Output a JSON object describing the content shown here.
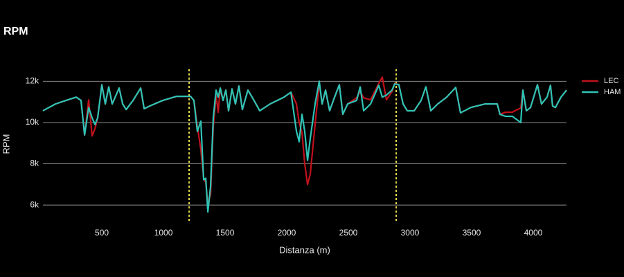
{
  "chart_data": {
    "type": "line",
    "title": "RPM",
    "x_label": "Distanza (m)",
    "y_label": "RPM",
    "x": [
      22,
      124,
      208,
      292,
      331,
      360,
      393,
      421,
      444,
      466,
      500,
      528,
      556,
      584,
      640,
      669,
      697,
      753,
      815,
      843,
      899,
      994,
      1107,
      1219,
      1247,
      1275,
      1303,
      1326,
      1343,
      1360,
      1382,
      1404,
      1427,
      1444,
      1461,
      1483,
      1506,
      1528,
      1556,
      1584,
      1612,
      1640,
      1685,
      1725,
      1781,
      1865,
      1978,
      2034,
      2079,
      2101,
      2124,
      2146,
      2169,
      2191,
      2230,
      2264,
      2287,
      2315,
      2348,
      2388,
      2427,
      2455,
      2494,
      2567,
      2596,
      2624,
      2680,
      2747,
      2775,
      2809,
      2854,
      2876,
      2910,
      2944,
      2978,
      3034,
      3090,
      3129,
      3169,
      3225,
      3298,
      3371,
      3410,
      3494,
      3607,
      3708,
      3730,
      3775,
      3831,
      3860,
      3899,
      3916,
      3944,
      3978,
      4034,
      4067,
      4112,
      4140,
      4157,
      4180,
      4225,
      4270
    ],
    "series": [
      {
        "name": "LEC",
        "color": "#c0121c",
        "values": [
          10570,
          10900,
          11070,
          11230,
          11070,
          9400,
          11100,
          9350,
          9700,
          10230,
          11830,
          10900,
          11730,
          10900,
          11670,
          10900,
          10630,
          11070,
          11670,
          10670,
          10830,
          11070,
          11270,
          11270,
          11070,
          9800,
          8700,
          7300,
          7100,
          6100,
          6500,
          9800,
          11300,
          10500,
          11670,
          11070,
          11570,
          10570,
          11630,
          10900,
          11770,
          10630,
          11570,
          11170,
          10570,
          10900,
          11230,
          11470,
          10900,
          10000,
          9500,
          8000,
          7000,
          7500,
          9900,
          11900,
          10900,
          11570,
          10570,
          11230,
          11830,
          10400,
          10900,
          11200,
          11500,
          11200,
          11100,
          11900,
          12200,
          11100,
          11500,
          11900,
          11830,
          10900,
          10570,
          10570,
          11070,
          11730,
          10570,
          10900,
          11230,
          11700,
          10470,
          10730,
          10900,
          10900,
          10400,
          10500,
          10500,
          10600,
          10700,
          11570,
          10570,
          10730,
          11830,
          10900,
          11230,
          11800,
          10800,
          10730,
          11230,
          11570
        ]
      },
      {
        "name": "HAM",
        "color": "#2ec4b6",
        "values": [
          10570,
          10900,
          11070,
          11230,
          11070,
          9400,
          10730,
          10230,
          9900,
          10230,
          11830,
          10900,
          11730,
          10900,
          11670,
          10900,
          10630,
          11070,
          11670,
          10670,
          10830,
          11070,
          11270,
          11270,
          11070,
          9570,
          10070,
          7230,
          7300,
          5670,
          6900,
          10230,
          11570,
          11230,
          11670,
          11070,
          11570,
          10570,
          11630,
          10900,
          11770,
          10630,
          11570,
          11170,
          10570,
          10900,
          11230,
          11470,
          9570,
          9070,
          10400,
          9570,
          8170,
          9230,
          10900,
          12000,
          10900,
          11570,
          10570,
          11230,
          11830,
          10400,
          10900,
          11070,
          11730,
          10570,
          10900,
          11800,
          11230,
          11330,
          11570,
          11870,
          11830,
          10900,
          10570,
          10570,
          11070,
          11730,
          10570,
          10900,
          11230,
          11700,
          10470,
          10730,
          10900,
          10900,
          10400,
          10300,
          10300,
          10170,
          10000,
          11570,
          10570,
          10730,
          11830,
          10900,
          11230,
          11800,
          10800,
          10730,
          11230,
          11570
        ]
      }
    ],
    "xlim": [
      22,
      4270
    ],
    "ylim": [
      5200,
      12750
    ],
    "xticks": [
      500,
      1000,
      1500,
      2000,
      2500,
      3000,
      3500,
      4000
    ],
    "yticks": [
      {
        "value": 6000,
        "label": "6k"
      },
      {
        "value": 8000,
        "label": "8k"
      },
      {
        "value": 10000,
        "label": "10k"
      },
      {
        "value": 12000,
        "label": "12k"
      }
    ],
    "grid": true,
    "legend": "right",
    "sector_lines": [
      1208,
      2888
    ],
    "sector_color": "#e8d84a"
  }
}
